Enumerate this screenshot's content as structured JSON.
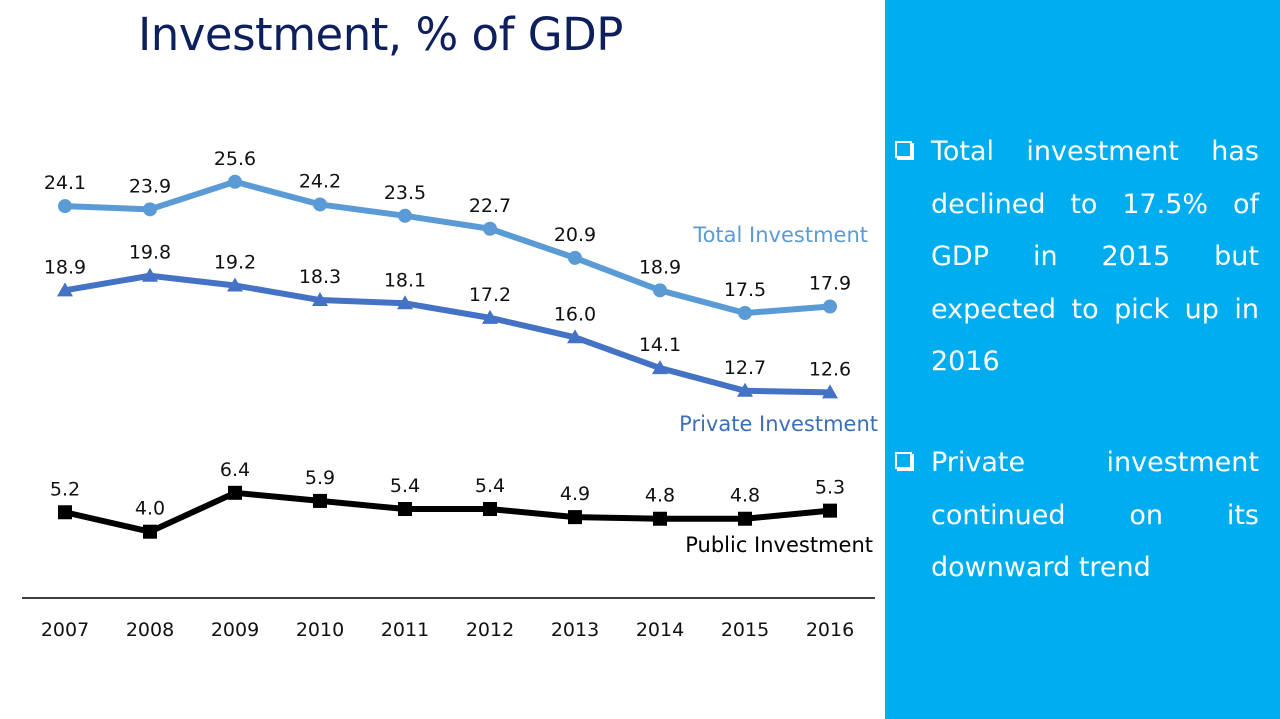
{
  "title": "Investment, % of GDP",
  "chart_data": {
    "type": "line",
    "title": "Investment, % of GDP",
    "xlabel": "",
    "ylabel": "",
    "ylim": [
      0,
      27
    ],
    "grid": false,
    "categories": [
      "2007",
      "2008",
      "2009",
      "2010",
      "2011",
      "2012",
      "2013",
      "2014",
      "2015",
      "2016"
    ],
    "series": [
      {
        "name": "Total Investment",
        "color": "#5b9bd5",
        "marker": "circle",
        "values": [
          24.1,
          23.9,
          25.6,
          24.2,
          23.5,
          22.7,
          20.9,
          18.9,
          17.5,
          17.9
        ]
      },
      {
        "name": "Private Investment",
        "color": "#4472c4",
        "marker": "triangle",
        "values": [
          18.9,
          19.8,
          19.2,
          18.3,
          18.1,
          17.2,
          16.0,
          14.1,
          12.7,
          12.6
        ]
      },
      {
        "name": "Public Investment",
        "color": "#000000",
        "marker": "square",
        "values": [
          5.2,
          4.0,
          6.4,
          5.9,
          5.4,
          5.4,
          4.9,
          4.8,
          4.8,
          5.3
        ]
      }
    ],
    "legend": "inline labels at right end of each series"
  },
  "panel": {
    "background": "#00adef",
    "bullets": [
      {
        "icon": "checkbox-icon",
        "text": "Total investment has declined to 17.5% of GDP in 2015 but expected to pick up in 2016"
      },
      {
        "icon": "checkbox-icon",
        "text": "Private investment continued on its downward trend"
      }
    ]
  }
}
